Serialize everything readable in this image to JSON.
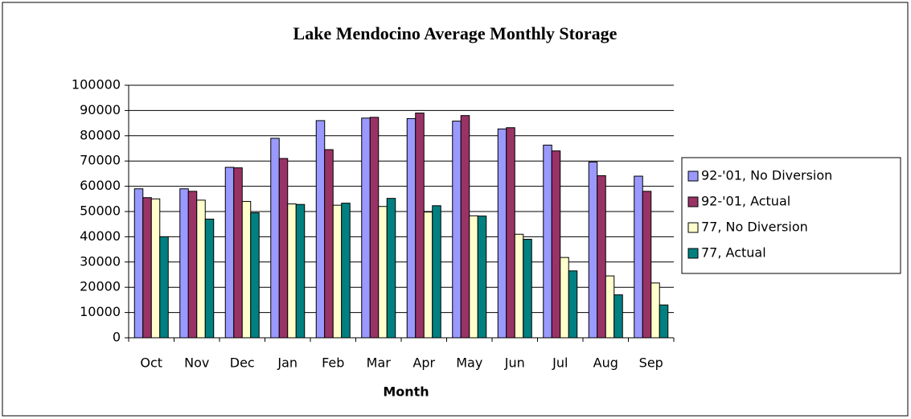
{
  "chart_data": {
    "type": "bar",
    "title": "Lake Mendocino Average Monthly Storage",
    "x_label": "Month",
    "categories": [
      "Oct",
      "Nov",
      "Dec",
      "Jan",
      "Feb",
      "Mar",
      "Apr",
      "May",
      "Jun",
      "Jul",
      "Aug",
      "Sep"
    ],
    "series": [
      {
        "name": "92-'01, No Diversion",
        "color": "#9999ff",
        "values": [
          59000,
          59000,
          67500,
          79000,
          86000,
          87000,
          86800,
          85800,
          82700,
          76300,
          69600,
          64000
        ]
      },
      {
        "name": "92-'01, Actual",
        "color": "#993366",
        "values": [
          55500,
          58000,
          67300,
          71000,
          74500,
          87300,
          89000,
          88000,
          83200,
          74000,
          64200,
          58000
        ]
      },
      {
        "name": "77, No Diversion",
        "color": "#ffffcc",
        "values": [
          55000,
          54500,
          54000,
          53000,
          52500,
          52000,
          49800,
          48300,
          41000,
          31800,
          24500,
          21700
        ]
      },
      {
        "name": "77, Actual",
        "color": "#008080",
        "values": [
          40000,
          47000,
          49500,
          52800,
          53300,
          55200,
          52300,
          48200,
          39000,
          26500,
          17000,
          13000
        ]
      }
    ],
    "ylim": [
      0,
      100000
    ],
    "yticks": [
      0,
      10000,
      20000,
      30000,
      40000,
      50000,
      60000,
      70000,
      80000,
      90000,
      100000
    ],
    "grid": true,
    "legend": "right"
  }
}
